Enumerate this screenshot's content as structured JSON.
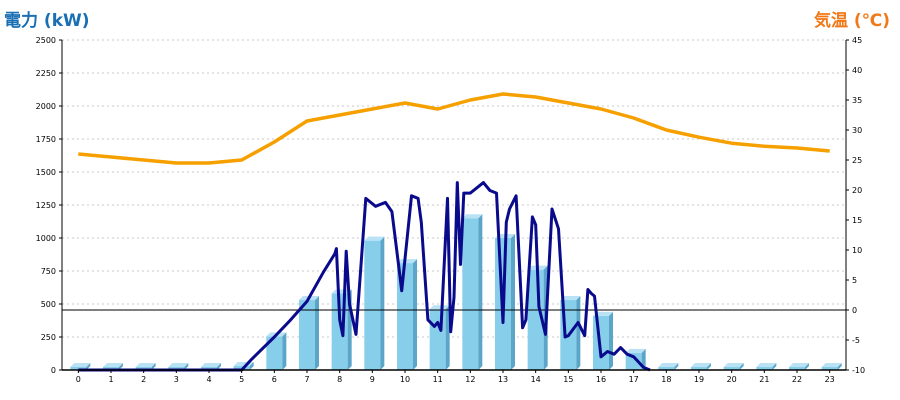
{
  "colors": {
    "power_label": "#1a6fb4",
    "temp_label": "#f07a1a",
    "bar_front": "#87ceeb",
    "bar_side": "#5aa5c8",
    "bar_top": "#b9e3f5",
    "power_line": "#0a0a8c",
    "temp_line": "#f6a000",
    "grid": "#c8c8c8"
  },
  "chart_data": [
    {
      "type": "bar",
      "name": "電力 (kW)",
      "categories": [
        "0",
        "1",
        "2",
        "3",
        "4",
        "5",
        "6",
        "7",
        "8",
        "9",
        "10",
        "11",
        "12",
        "13",
        "14",
        "15",
        "16",
        "17",
        "18",
        "19",
        "20",
        "21",
        "22",
        "23"
      ],
      "values": [
        0,
        0,
        0,
        0,
        0,
        30,
        255,
        530,
        580,
        980,
        810,
        460,
        1150,
        1000,
        760,
        530,
        410,
        130,
        0,
        0,
        0,
        0,
        0,
        0
      ],
      "ylabel": "電力 (kW)",
      "ylim": [
        0,
        2500
      ],
      "yticks": [
        0,
        250,
        500,
        750,
        1000,
        1250,
        1500,
        1750,
        2000,
        2250,
        2500
      ],
      "grid": true
    },
    {
      "type": "line",
      "name": "電力 (kW)",
      "x": [
        0,
        5,
        5.3,
        6,
        6.5,
        7,
        7.5,
        7.85,
        7.9,
        8.0,
        8.1,
        8.2,
        8.3,
        8.5,
        8.8,
        9.1,
        9.4,
        9.6,
        9.8,
        9.9,
        10.2,
        10.4,
        10.5,
        10.7,
        10.9,
        11.0,
        11.1,
        11.3,
        11.4,
        11.5,
        11.6,
        11.7,
        11.8,
        12.0,
        12.2,
        12.4,
        12.6,
        12.8,
        13.0,
        13.1,
        13.2,
        13.4,
        13.6,
        13.7,
        13.9,
        14.0,
        14.1,
        14.3,
        14.5,
        14.7,
        14.9,
        15.0,
        15.3,
        15.5,
        15.6,
        15.7,
        15.8,
        16.0,
        16.2,
        16.4,
        16.6,
        16.8,
        17.0,
        17.3,
        17.5
      ],
      "values": [
        0,
        0,
        80,
        250,
        380,
        520,
        740,
        880,
        920,
        380,
        260,
        900,
        500,
        270,
        1300,
        1240,
        1270,
        1200,
        800,
        600,
        1320,
        1300,
        1120,
        380,
        330,
        360,
        300,
        1300,
        290,
        550,
        1420,
        800,
        1340,
        1340,
        1380,
        1420,
        1360,
        1340,
        360,
        1120,
        1220,
        1320,
        320,
        380,
        1160,
        1100,
        480,
        270,
        1220,
        1070,
        250,
        260,
        360,
        260,
        610,
        580,
        560,
        100,
        140,
        120,
        170,
        120,
        100,
        20,
        0
      ]
    },
    {
      "type": "line",
      "name": "気温 (℃)",
      "x": [
        0,
        1,
        2,
        3,
        4,
        5,
        6,
        7,
        8,
        9,
        10,
        11,
        12,
        13,
        14,
        15,
        16,
        17,
        18,
        19,
        20,
        21,
        22,
        23
      ],
      "values": [
        26,
        25.5,
        25,
        24.5,
        24.5,
        25,
        28,
        31.5,
        32.5,
        33.5,
        34.5,
        33.5,
        35,
        36,
        35.5,
        34.5,
        33.5,
        32,
        30,
        28.8,
        27.8,
        27.3,
        27,
        26.5
      ],
      "ylabel": "気温 (℃)",
      "ylim": [
        -10,
        45
      ],
      "yticks": [
        -10,
        -5,
        0,
        5,
        10,
        15,
        20,
        25,
        30,
        35,
        40,
        45
      ]
    }
  ]
}
